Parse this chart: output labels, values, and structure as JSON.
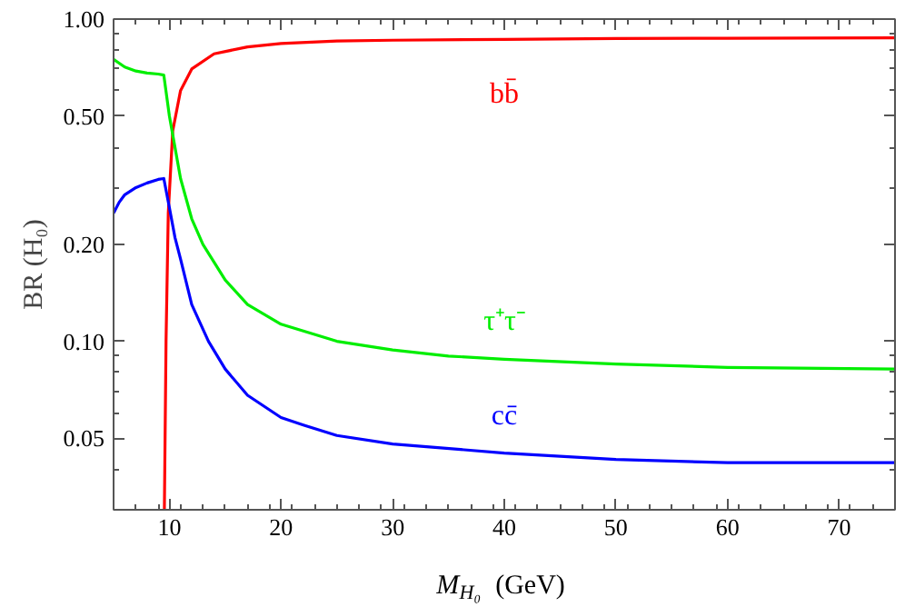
{
  "chart_data": {
    "type": "line",
    "xlabel": "M$_{H₀}$ (GeV)",
    "ylabel": "BR (H₀)",
    "log": "y",
    "grid": false,
    "xlim": [
      5,
      75
    ],
    "xticks": [
      10,
      20,
      30,
      40,
      50,
      60,
      70
    ],
    "ylim": [
      0.03,
      1.0
    ],
    "yticks": [
      {
        "value": 0.05,
        "label": "0.05"
      },
      {
        "value": 0.1,
        "label": "0.10"
      },
      {
        "value": 0.2,
        "label": "0.20"
      },
      {
        "value": 0.5,
        "label": "0.50"
      },
      {
        "value": 1.0,
        "label": "1.00"
      }
    ],
    "series": [
      {
        "name": "bb̄",
        "color": "#ff0000",
        "x": [
          9.55,
          9.7,
          9.9,
          10.3,
          11,
          12,
          14,
          17,
          20,
          25,
          30,
          40,
          50,
          60,
          75
        ],
        "values": [
          0.03,
          0.1,
          0.25,
          0.45,
          0.6,
          0.7,
          0.78,
          0.82,
          0.84,
          0.855,
          0.86,
          0.865,
          0.87,
          0.872,
          0.875
        ]
      },
      {
        "name": "τ⁺τ⁻",
        "color": "#00ee00",
        "x": [
          5,
          6,
          7,
          8,
          9,
          9.5,
          10,
          10.5,
          11,
          12,
          13,
          15,
          17,
          20,
          25,
          30,
          35,
          40,
          50,
          60,
          75
        ],
        "values": [
          0.75,
          0.71,
          0.69,
          0.68,
          0.675,
          0.67,
          0.5,
          0.4,
          0.32,
          0.24,
          0.2,
          0.155,
          0.13,
          0.113,
          0.1,
          0.094,
          0.09,
          0.088,
          0.085,
          0.083,
          0.082
        ]
      },
      {
        "name": "cc̄",
        "color": "#0000ff",
        "x": [
          5,
          5.5,
          6,
          7,
          8,
          9,
          9.5,
          10,
          10.5,
          11,
          12,
          13.5,
          15,
          17,
          20,
          22,
          25,
          30,
          40,
          50,
          60,
          75
        ],
        "values": [
          0.25,
          0.27,
          0.285,
          0.3,
          0.31,
          0.318,
          0.32,
          0.26,
          0.21,
          0.18,
          0.13,
          0.1,
          0.082,
          0.068,
          0.058,
          0.055,
          0.051,
          0.048,
          0.045,
          0.043,
          0.042,
          0.042
        ]
      }
    ]
  }
}
